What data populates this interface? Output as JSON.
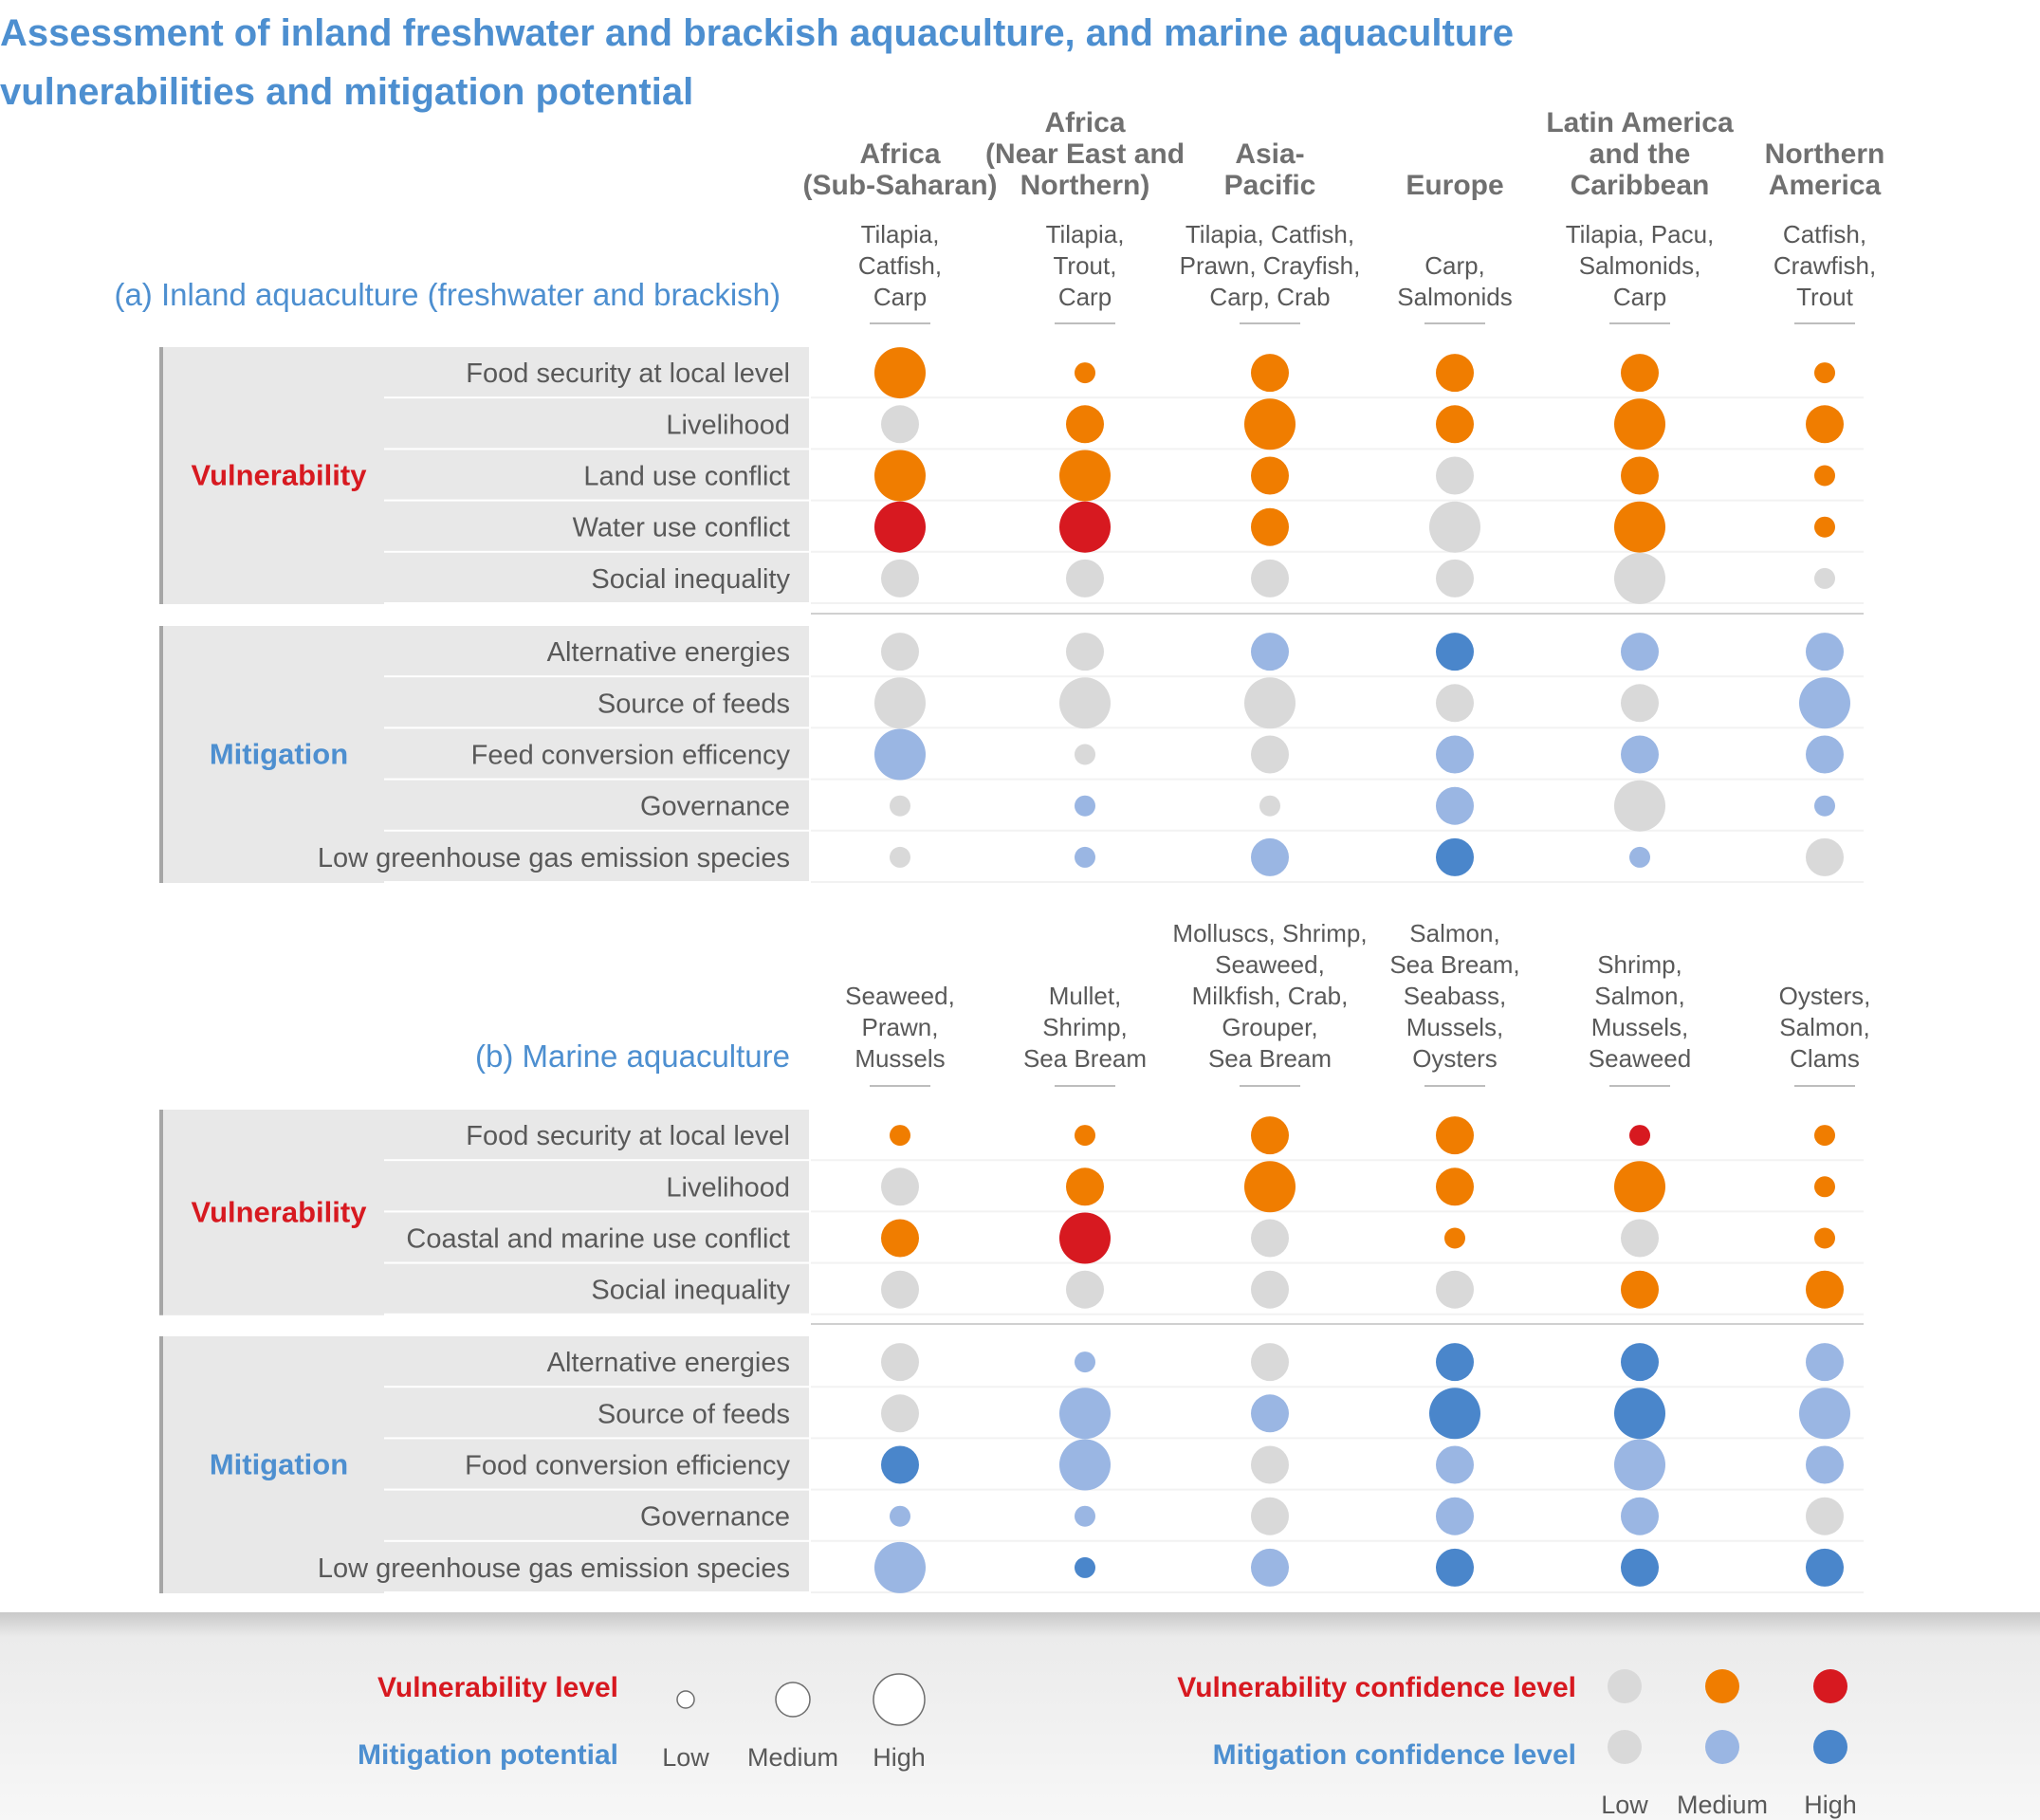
{
  "title": {
    "line1": "Assessment of inland freshwater and brackish aquaculture, and marine aquaculture",
    "line2": "vulnerabilities and mitigation potential"
  },
  "colors": {
    "title": "#4d8fd0",
    "vulnerability_label": "#d71920",
    "mitigation_label": "#4d8fd0",
    "panel_title": "#4d8fd0",
    "text": "#595959",
    "band": "#e8e8e8",
    "bracket": "#a6a6a6",
    "footer": "#efefef",
    "low_confidence": "#d9d9d9",
    "vulnerability_medium": "#f07d00",
    "vulnerability_high": "#d71920",
    "mitigation_medium": "#9ab6e3",
    "mitigation_high": "#4a86cb"
  },
  "regions": [
    "Africa\n(Sub-Saharan)",
    "Africa\n(Near East and\nNorthern)",
    "Asia-\nPacific",
    "Europe",
    "Latin America\nand the\nCaribbean",
    "Northern\nAmerica"
  ],
  "chart_data": {
    "type": "bubble-matrix",
    "encoding": {
      "bubble_size": "vulnerability level / mitigation potential (1 = Low, 2 = Medium, 3 = High)",
      "bubble_color": "confidence level (1 = Low, 2 = Medium, 3 = High)"
    },
    "panels": [
      {
        "title": "(a) Inland aquaculture (freshwater and brackish)",
        "species": [
          "Tilapia,\nCatfish,\nCarp",
          "Tilapia,\nTrout,\nCarp",
          "Tilapia, Catfish,\nPrawn, Crayfish,\nCarp, Crab",
          "Carp,\nSalmonids",
          "Tilapia, Pacu,\nSalmonids,\nCarp",
          "Catfish,\nCrawfish,\nTrout"
        ],
        "groups": [
          {
            "name": "Vulnerability",
            "kind": "vulnerability",
            "rows": [
              {
                "label": "Food security at local level",
                "size": [
                  3,
                  1,
                  2,
                  2,
                  2,
                  1
                ],
                "confidence": [
                  2,
                  2,
                  2,
                  2,
                  2,
                  2
                ]
              },
              {
                "label": "Livelihood",
                "size": [
                  2,
                  2,
                  3,
                  2,
                  3,
                  2
                ],
                "confidence": [
                  1,
                  2,
                  2,
                  2,
                  2,
                  2
                ]
              },
              {
                "label": "Land use conflict",
                "size": [
                  3,
                  3,
                  2,
                  2,
                  2,
                  1
                ],
                "confidence": [
                  2,
                  2,
                  2,
                  1,
                  2,
                  2
                ]
              },
              {
                "label": "Water use conflict",
                "size": [
                  3,
                  3,
                  2,
                  3,
                  3,
                  1
                ],
                "confidence": [
                  3,
                  3,
                  2,
                  1,
                  2,
                  2
                ]
              },
              {
                "label": "Social inequality",
                "size": [
                  2,
                  2,
                  2,
                  2,
                  3,
                  1
                ],
                "confidence": [
                  1,
                  1,
                  1,
                  1,
                  1,
                  1
                ]
              }
            ]
          },
          {
            "name": "Mitigation",
            "kind": "mitigation",
            "rows": [
              {
                "label": "Alternative energies",
                "size": [
                  2,
                  2,
                  2,
                  2,
                  2,
                  2
                ],
                "confidence": [
                  1,
                  1,
                  2,
                  3,
                  2,
                  2
                ]
              },
              {
                "label": "Source of feeds",
                "size": [
                  3,
                  3,
                  3,
                  2,
                  2,
                  3
                ],
                "confidence": [
                  1,
                  1,
                  1,
                  1,
                  1,
                  2
                ]
              },
              {
                "label": "Feed conversion efficency",
                "size": [
                  3,
                  1,
                  2,
                  2,
                  2,
                  2
                ],
                "confidence": [
                  2,
                  1,
                  1,
                  2,
                  2,
                  2
                ]
              },
              {
                "label": "Governance",
                "size": [
                  1,
                  1,
                  1,
                  2,
                  3,
                  1
                ],
                "confidence": [
                  1,
                  2,
                  1,
                  2,
                  1,
                  2
                ]
              },
              {
                "label": "Low greenhouse gas emission species",
                "size": [
                  1,
                  1,
                  2,
                  2,
                  1,
                  2
                ],
                "confidence": [
                  1,
                  2,
                  2,
                  3,
                  2,
                  1
                ]
              }
            ]
          }
        ]
      },
      {
        "title": "(b) Marine aquaculture",
        "species": [
          "Seaweed,\nPrawn,\nMussels",
          "Mullet,\nShrimp,\nSea Bream",
          "Molluscs, Shrimp,\nSeaweed,\nMilkfish, Crab,\nGrouper,\nSea Bream",
          "Salmon,\nSea Bream,\nSeabass,\nMussels,\nOysters",
          "Shrimp,\nSalmon,\nMussels,\nSeaweed",
          "Oysters,\nSalmon,\nClams"
        ],
        "groups": [
          {
            "name": "Vulnerability",
            "kind": "vulnerability",
            "rows": [
              {
                "label": "Food security at local level",
                "size": [
                  1,
                  1,
                  2,
                  2,
                  1,
                  1
                ],
                "confidence": [
                  2,
                  2,
                  2,
                  2,
                  3,
                  2
                ]
              },
              {
                "label": "Livelihood",
                "size": [
                  2,
                  2,
                  3,
                  2,
                  3,
                  1
                ],
                "confidence": [
                  1,
                  2,
                  2,
                  2,
                  2,
                  2
                ]
              },
              {
                "label": "Coastal and marine use conflict",
                "size": [
                  2,
                  3,
                  2,
                  1,
                  2,
                  1
                ],
                "confidence": [
                  2,
                  3,
                  1,
                  2,
                  1,
                  2
                ]
              },
              {
                "label": "Social inequality",
                "size": [
                  2,
                  2,
                  2,
                  2,
                  2,
                  2
                ],
                "confidence": [
                  1,
                  1,
                  1,
                  1,
                  2,
                  2
                ]
              }
            ]
          },
          {
            "name": "Mitigation",
            "kind": "mitigation",
            "rows": [
              {
                "label": "Alternative energies",
                "size": [
                  2,
                  1,
                  2,
                  2,
                  2,
                  2
                ],
                "confidence": [
                  1,
                  2,
                  1,
                  3,
                  3,
                  2
                ]
              },
              {
                "label": "Source of feeds",
                "size": [
                  2,
                  3,
                  2,
                  3,
                  3,
                  3
                ],
                "confidence": [
                  1,
                  2,
                  2,
                  3,
                  3,
                  2
                ]
              },
              {
                "label": "Food conversion efficiency",
                "size": [
                  2,
                  3,
                  2,
                  2,
                  3,
                  2
                ],
                "confidence": [
                  3,
                  2,
                  1,
                  2,
                  2,
                  2
                ]
              },
              {
                "label": "Governance",
                "size": [
                  1,
                  1,
                  2,
                  2,
                  2,
                  2
                ],
                "confidence": [
                  2,
                  2,
                  1,
                  2,
                  2,
                  1
                ]
              },
              {
                "label": "Low greenhouse gas emission species",
                "size": [
                  3,
                  1,
                  2,
                  2,
                  2,
                  2
                ],
                "confidence": [
                  2,
                  3,
                  2,
                  3,
                  3,
                  3
                ]
              }
            ]
          }
        ]
      }
    ],
    "legend": {
      "size_labels": [
        "Vulnerability level",
        "Mitigation potential"
      ],
      "size_levels": [
        "Low",
        "Medium",
        "High"
      ],
      "confidence_labels": [
        "Vulnerability confidence level",
        "Mitigation confidence level"
      ],
      "confidence_levels": [
        "Low",
        "Medium",
        "High"
      ]
    }
  }
}
